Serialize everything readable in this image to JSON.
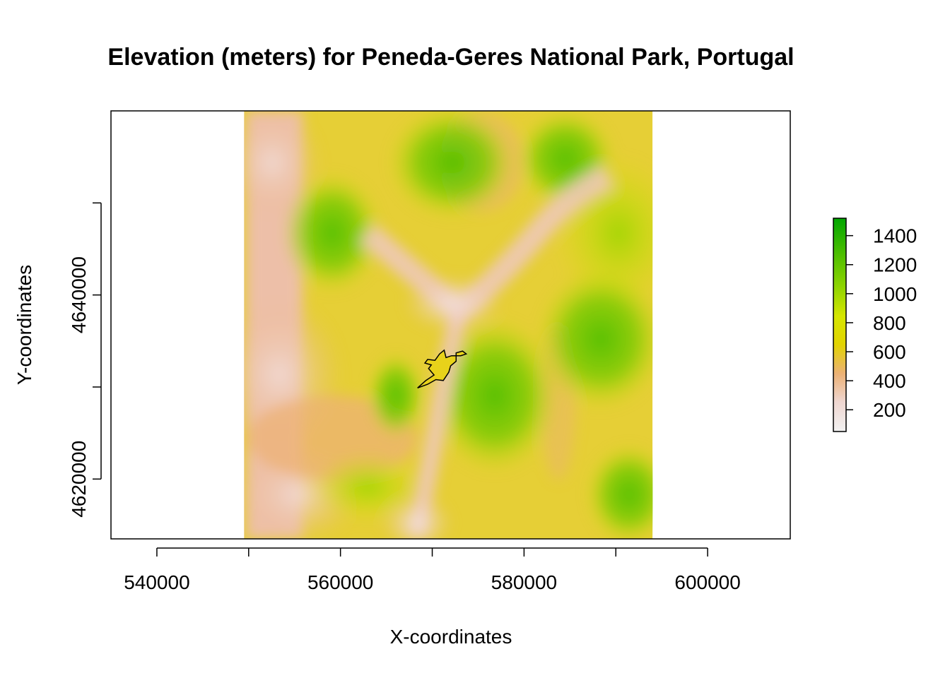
{
  "chart_data": {
    "type": "heatmap",
    "title": "Elevation (meters) for Peneda-Geres National Park, Portugal",
    "xlabel": "X-coordinates",
    "ylabel": "Y-coordinates",
    "xlim": [
      535000,
      609000
    ],
    "ylim": [
      4613500,
      4660000
    ],
    "x_ticks": [
      540000,
      550000,
      560000,
      570000,
      580000,
      590000,
      600000
    ],
    "x_tick_labels": [
      "540000",
      "",
      "560000",
      "",
      "580000",
      "",
      "600000"
    ],
    "y_ticks": [
      4620000,
      4630000,
      4640000,
      4650000
    ],
    "y_tick_labels": [
      "4620000",
      "",
      "4640000",
      ""
    ],
    "raster_extent": {
      "xmin": 549500,
      "xmax": 594000,
      "ymin": 4613500,
      "ymax": 4660000
    },
    "grid": false,
    "legend": {
      "type": "colorbar",
      "placement": "right",
      "range": [
        50,
        1520
      ],
      "ticks": [
        200,
        400,
        600,
        800,
        1000,
        1200,
        1400
      ],
      "tick_labels": [
        "200",
        "400",
        "600",
        "800",
        "1000",
        "1200",
        "1400"
      ],
      "colors": [
        "#F2F2F2",
        "#EFC8BE",
        "#ECB176",
        "#E6E600",
        "#A5DC00",
        "#63C600",
        "#00A600"
      ]
    },
    "overlay": {
      "type": "polygon-outline",
      "color": "#000000",
      "points": [
        [
          568400,
          4629900
        ],
        [
          569300,
          4630700
        ],
        [
          570200,
          4631300
        ],
        [
          569600,
          4632000
        ],
        [
          569900,
          4632400
        ],
        [
          569200,
          4632600
        ],
        [
          569500,
          4633000
        ],
        [
          570300,
          4632900
        ],
        [
          570800,
          4633600
        ],
        [
          571300,
          4634000
        ],
        [
          571500,
          4633200
        ],
        [
          572100,
          4633400
        ],
        [
          573100,
          4633400
        ],
        [
          573700,
          4633600
        ],
        [
          573300,
          4633900
        ],
        [
          572600,
          4633700
        ],
        [
          572600,
          4632800
        ],
        [
          572000,
          4632300
        ],
        [
          571800,
          4631600
        ],
        [
          571200,
          4630700
        ],
        [
          570400,
          4630800
        ],
        [
          569500,
          4630300
        ],
        [
          568400,
          4629900
        ]
      ]
    }
  }
}
